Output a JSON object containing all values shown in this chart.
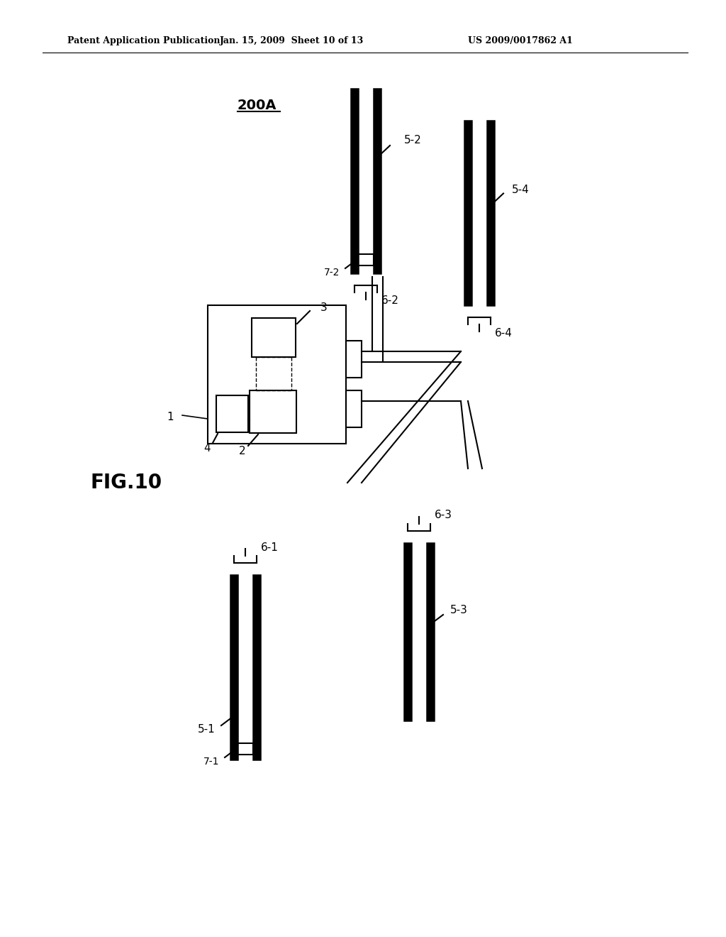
{
  "bg_color": "#ffffff",
  "line_color": "#000000",
  "header_left": "Patent Application Publication",
  "header_mid": "Jan. 15, 2009  Sheet 10 of 13",
  "header_right": "US 2009/0017862 A1",
  "fig_label": "FIG.10",
  "system_label": "200A"
}
